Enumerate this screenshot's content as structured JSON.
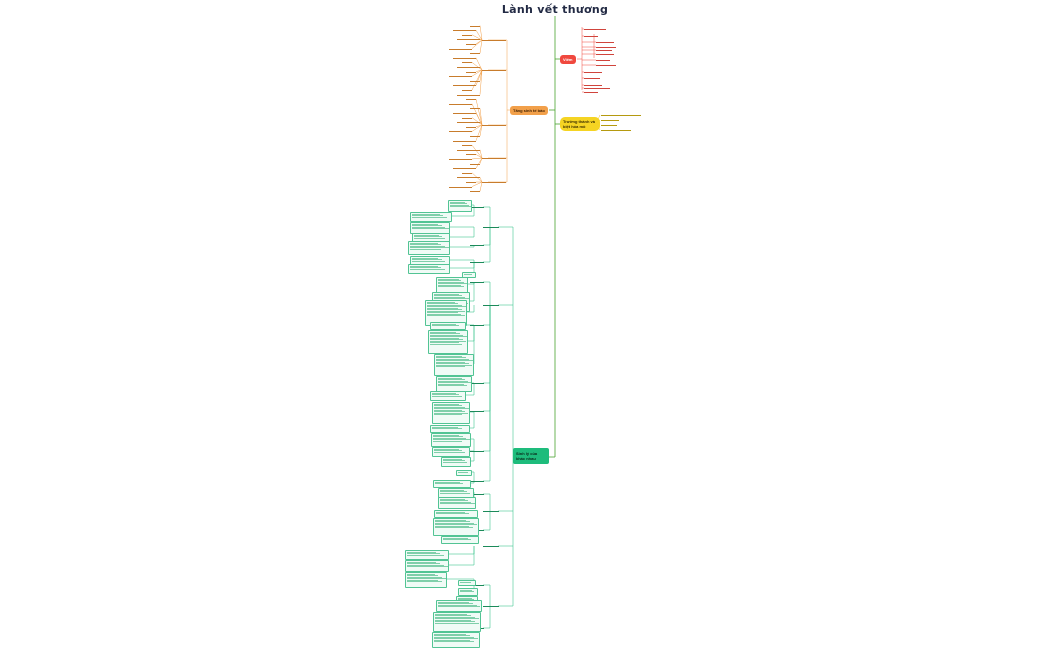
{
  "title": "Lành vết thương",
  "colors": {
    "trunk": "#4aa32e",
    "red": "#f0483e",
    "yellow": "#f5d423",
    "orange": "#f2a04a",
    "green": "#1ebc7c"
  },
  "branches": {
    "red": {
      "label": "Viêm"
    },
    "yellow": {
      "label": "Trưởng thành và biệt hóa mô"
    },
    "orange": {
      "label": "Tăng sinh tế bào"
    },
    "green": {
      "label": "Sinh lý của khác nhau"
    }
  }
}
